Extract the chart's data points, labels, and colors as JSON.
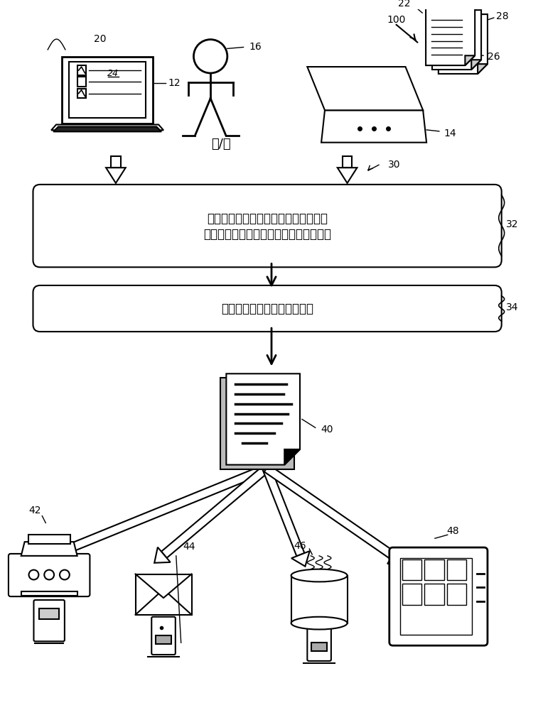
{
  "bg_color": "#ffffff",
  "box1_text_line1": "使用多个样本对具有页码的文档去页码",
  "box1_text_line2": "并且对样本页面顺序分段以查找页码样式",
  "box2_text": "合并文档并重分页合并的文档",
  "label_20": "20",
  "label_12": "12",
  "label_16": "16",
  "label_24": "24",
  "label_100": "100",
  "label_22": "22",
  "label_28": "28",
  "label_26": "26",
  "label_14": "14",
  "label_30": "30",
  "label_32": "32",
  "label_34": "34",
  "label_40": "40",
  "label_42": "42",
  "label_44": "44",
  "label_46": "46",
  "label_48": "48",
  "text_and_or": "和/或",
  "line_color": "#000000",
  "text_color": "#000000"
}
